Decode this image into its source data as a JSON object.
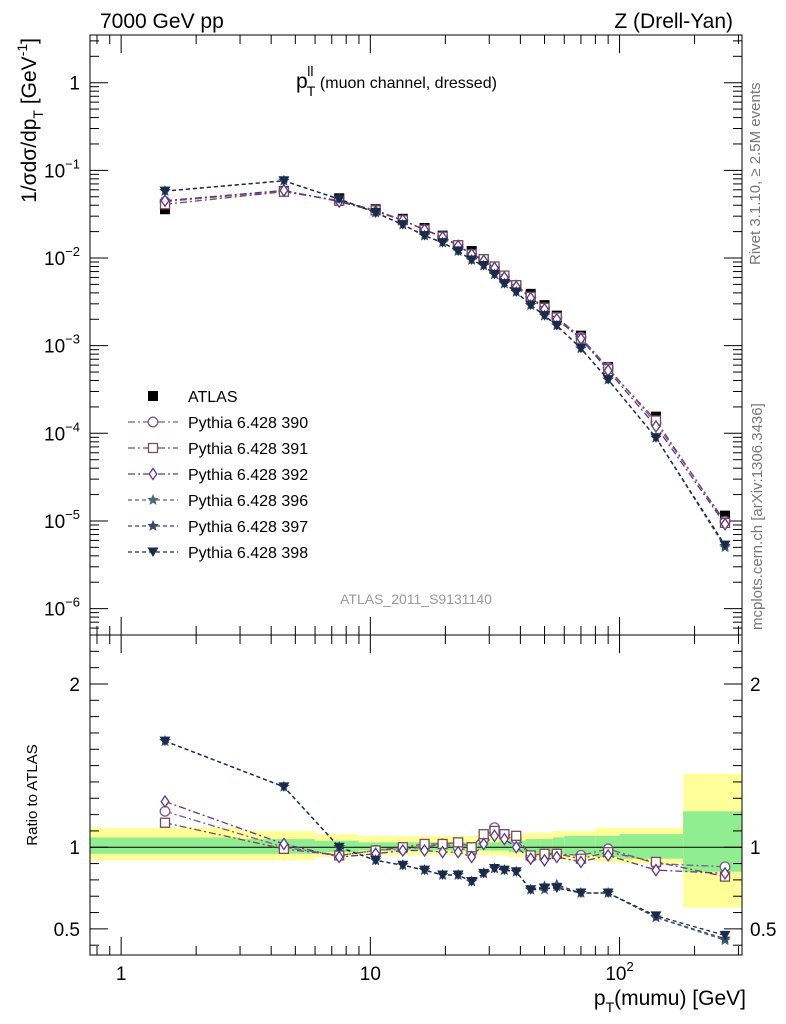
{
  "header": {
    "left": "7000 GeV pp",
    "right": "Z (Drell-Yan)"
  },
  "side_labels": {
    "rivet": "Rivet 3.1.10, ≥ 2.5M events",
    "mcplots": "mcplots.cern.ch [arXiv:1306.3436]"
  },
  "plot_title": {
    "main": "p",
    "superscript": "ll",
    "subscript": "T",
    "rest": " (muon channel, dressed)"
  },
  "analysis_id": "ATLAS_2011_S9131140",
  "colors": {
    "data": "#000000",
    "p390": "#7e5a8a",
    "p391": "#7a4a5a",
    "p392": "#5a3a8a",
    "p396": "#4a6a7a",
    "p397": "#3a4a6a",
    "p398": "#1a2a4a",
    "band_stat": "#90ee90",
    "band_total": "#ffff99"
  },
  "chart_data": [
    {
      "type": "scatter",
      "title": "",
      "ylabel": "1/σdσ/dp_T [GeV^-1]",
      "xlabel": "",
      "log_x": true,
      "log_y": true,
      "xlim": [
        0.75,
        310
      ],
      "ylim": [
        5e-07,
        3.5
      ],
      "x_tick_labels": [
        "1",
        "10",
        "10²"
      ],
      "y_tick_labels": [
        "10⁻⁶",
        "10⁻⁵",
        "10⁻⁴",
        "10⁻³",
        "10⁻²",
        "10⁻¹",
        "1"
      ],
      "legend_position": "middle-left",
      "x": [
        1.5,
        4.5,
        7.5,
        10.5,
        13.5,
        16.5,
        19.5,
        22.5,
        25.5,
        28.5,
        31.5,
        34.5,
        38.5,
        44.0,
        50.0,
        56.0,
        70.0,
        90.0,
        140.0,
        265.0
      ],
      "series": [
        {
          "name": "ATLAS",
          "marker": "filled-square",
          "values": [
            0.036,
            0.058,
            0.048,
            0.036,
            0.028,
            0.022,
            0.018,
            0.014,
            0.012,
            0.0095,
            0.0075,
            0.006,
            0.0048,
            0.0039,
            0.0029,
            0.0022,
            0.0013,
            0.00057,
            0.000155,
            1.15e-05
          ]
        },
        {
          "name": "Pythia 6.428 390",
          "marker": "open-circle",
          "values": [
            0.044,
            0.058,
            0.045,
            0.035,
            0.027,
            0.021,
            0.0175,
            0.014,
            0.011,
            0.0095,
            0.0078,
            0.0062,
            0.0049,
            0.0036,
            0.0027,
            0.0021,
            0.00125,
            0.00056,
            0.00013,
            9.9e-06
          ]
        },
        {
          "name": "Pythia 6.428 391",
          "marker": "open-square",
          "values": [
            0.041,
            0.057,
            0.045,
            0.035,
            0.027,
            0.021,
            0.0175,
            0.014,
            0.011,
            0.0097,
            0.008,
            0.0063,
            0.0049,
            0.0036,
            0.0027,
            0.0021,
            0.0012,
            0.00054,
            0.00014,
            9.5e-06
          ]
        },
        {
          "name": "Pythia 6.428 392",
          "marker": "open-diamond",
          "values": [
            0.045,
            0.059,
            0.044,
            0.034,
            0.027,
            0.021,
            0.0172,
            0.0137,
            0.011,
            0.0093,
            0.0077,
            0.006,
            0.0047,
            0.0035,
            0.0026,
            0.002,
            0.0012,
            0.00052,
            0.00012,
            9.2e-06
          ]
        },
        {
          "name": "Pythia 6.428 396",
          "marker": "star",
          "values": [
            0.058,
            0.076,
            0.047,
            0.033,
            0.024,
            0.018,
            0.015,
            0.012,
            0.0095,
            0.0082,
            0.0065,
            0.0051,
            0.0041,
            0.0029,
            0.0022,
            0.0017,
            0.00093,
            0.00041,
            8.9e-05,
            5e-06
          ]
        },
        {
          "name": "Pythia 6.428 397",
          "marker": "star",
          "values": [
            0.058,
            0.076,
            0.047,
            0.033,
            0.024,
            0.018,
            0.015,
            0.012,
            0.0095,
            0.0082,
            0.0065,
            0.0051,
            0.0041,
            0.0029,
            0.0022,
            0.0017,
            0.00093,
            0.00041,
            8.9e-05,
            5.2e-06
          ]
        },
        {
          "name": "Pythia 6.428 398",
          "marker": "filled-triangle-down",
          "values": [
            0.058,
            0.076,
            0.047,
            0.033,
            0.024,
            0.018,
            0.015,
            0.012,
            0.0095,
            0.0082,
            0.0065,
            0.0051,
            0.0041,
            0.0029,
            0.0022,
            0.0017,
            0.00093,
            0.00041,
            8.9e-05,
            5.3e-06
          ]
        }
      ]
    },
    {
      "type": "line",
      "title": "",
      "ylabel": "Ratio to ATLAS",
      "xlabel": "p_T(mumu) [GeV]",
      "log_x": true,
      "xlim": [
        0.75,
        310
      ],
      "ylim": [
        0.34,
        2.3
      ],
      "x_tick_labels": [
        "1",
        "10",
        "10²"
      ],
      "y_tick_labels": [
        "0.5",
        "1",
        "2"
      ],
      "reference_line": 1,
      "bins": [
        [
          0.75,
          3
        ],
        [
          3,
          6
        ],
        [
          6,
          9
        ],
        [
          9,
          12
        ],
        [
          12,
          15
        ],
        [
          15,
          18
        ],
        [
          18,
          21
        ],
        [
          21,
          24
        ],
        [
          24,
          27
        ],
        [
          27,
          30
        ],
        [
          30,
          33
        ],
        [
          33,
          36
        ],
        [
          36,
          42
        ],
        [
          42,
          48
        ],
        [
          48,
          54
        ],
        [
          54,
          60
        ],
        [
          60,
          80
        ],
        [
          80,
          100
        ],
        [
          100,
          180
        ],
        [
          180,
          310
        ]
      ],
      "band_total": [
        [
          0.92,
          1.12
        ],
        [
          0.92,
          1.1
        ],
        [
          0.94,
          1.08
        ],
        [
          0.95,
          1.07
        ],
        [
          0.95,
          1.07
        ],
        [
          0.95,
          1.07
        ],
        [
          0.95,
          1.07
        ],
        [
          0.95,
          1.07
        ],
        [
          0.95,
          1.07
        ],
        [
          0.95,
          1.07
        ],
        [
          0.95,
          1.07
        ],
        [
          0.95,
          1.08
        ],
        [
          0.94,
          1.08
        ],
        [
          0.93,
          1.09
        ],
        [
          0.93,
          1.09
        ],
        [
          0.92,
          1.1
        ],
        [
          0.92,
          1.1
        ],
        [
          0.91,
          1.12
        ],
        [
          0.9,
          1.12
        ],
        [
          0.63,
          1.45
        ]
      ],
      "band_stat": [
        [
          0.96,
          1.06
        ],
        [
          0.96,
          1.05
        ],
        [
          0.97,
          1.04
        ],
        [
          0.98,
          1.03
        ],
        [
          0.98,
          1.03
        ],
        [
          0.98,
          1.03
        ],
        [
          0.98,
          1.03
        ],
        [
          0.98,
          1.03
        ],
        [
          0.98,
          1.03
        ],
        [
          0.98,
          1.03
        ],
        [
          0.98,
          1.03
        ],
        [
          0.98,
          1.04
        ],
        [
          0.97,
          1.04
        ],
        [
          0.96,
          1.05
        ],
        [
          0.96,
          1.05
        ],
        [
          0.96,
          1.06
        ],
        [
          0.95,
          1.07
        ],
        [
          0.94,
          1.07
        ],
        [
          0.93,
          1.08
        ],
        [
          0.85,
          1.22
        ]
      ],
      "x": [
        1.5,
        4.5,
        7.5,
        10.5,
        13.5,
        16.5,
        19.5,
        22.5,
        25.5,
        28.5,
        31.5,
        34.5,
        38.5,
        44.0,
        50.0,
        56.0,
        70.0,
        90.0,
        140.0,
        265.0
      ],
      "series": [
        {
          "name": "Pythia 6.428 390",
          "marker": "open-circle",
          "values": [
            1.22,
            1.0,
            0.95,
            0.98,
            0.99,
            1.0,
            1.02,
            1.0,
            0.97,
            1.05,
            1.12,
            1.07,
            1.05,
            0.94,
            0.95,
            0.96,
            0.95,
            0.99,
            0.9,
            0.88
          ]
        },
        {
          "name": "Pythia 6.428 391",
          "marker": "open-square",
          "values": [
            1.15,
            0.99,
            0.95,
            0.98,
            1.0,
            1.02,
            1.02,
            1.03,
            1.0,
            1.08,
            1.1,
            1.08,
            1.07,
            0.95,
            0.96,
            0.96,
            0.93,
            0.97,
            0.91,
            0.82
          ]
        },
        {
          "name": "Pythia 6.428 392",
          "marker": "open-diamond",
          "values": [
            1.28,
            1.02,
            0.94,
            0.96,
            0.98,
            0.98,
            0.97,
            0.97,
            0.94,
            1.02,
            1.07,
            1.05,
            1.0,
            0.93,
            0.92,
            0.94,
            0.91,
            0.95,
            0.86,
            0.84
          ]
        },
        {
          "name": "Pythia 6.428 396",
          "marker": "star",
          "values": [
            1.65,
            1.37,
            1.0,
            0.92,
            0.89,
            0.86,
            0.83,
            0.83,
            0.79,
            0.84,
            0.87,
            0.86,
            0.85,
            0.74,
            0.74,
            0.76,
            0.72,
            0.72,
            0.57,
            0.43
          ]
        },
        {
          "name": "Pythia 6.428 397",
          "marker": "star",
          "values": [
            1.65,
            1.37,
            1.0,
            0.92,
            0.89,
            0.86,
            0.83,
            0.83,
            0.79,
            0.84,
            0.87,
            0.86,
            0.85,
            0.74,
            0.76,
            0.77,
            0.72,
            0.72,
            0.57,
            0.44
          ]
        },
        {
          "name": "Pythia 6.428 398",
          "marker": "filled-triangle-down",
          "values": [
            1.65,
            1.37,
            1.0,
            0.92,
            0.89,
            0.86,
            0.83,
            0.83,
            0.79,
            0.84,
            0.87,
            0.86,
            0.85,
            0.74,
            0.75,
            0.75,
            0.72,
            0.72,
            0.58,
            0.46
          ]
        }
      ]
    }
  ]
}
